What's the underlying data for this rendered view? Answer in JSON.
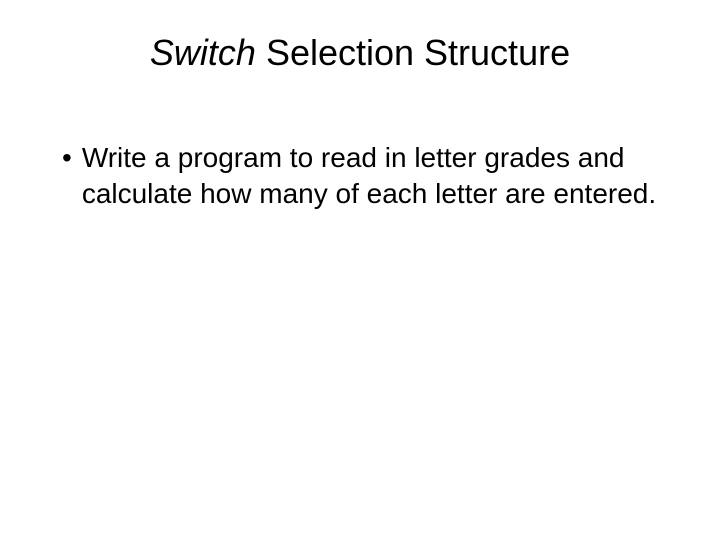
{
  "slide": {
    "title_italic": "Switch",
    "title_rest": " Selection Structure",
    "bullet_text": "Write a program to read in letter grades and calculate how many of each letter are entered.",
    "background_color": "#ffffff",
    "text_color": "#000000",
    "title_fontsize": 36,
    "body_fontsize": 28,
    "font_family": "Arial"
  }
}
